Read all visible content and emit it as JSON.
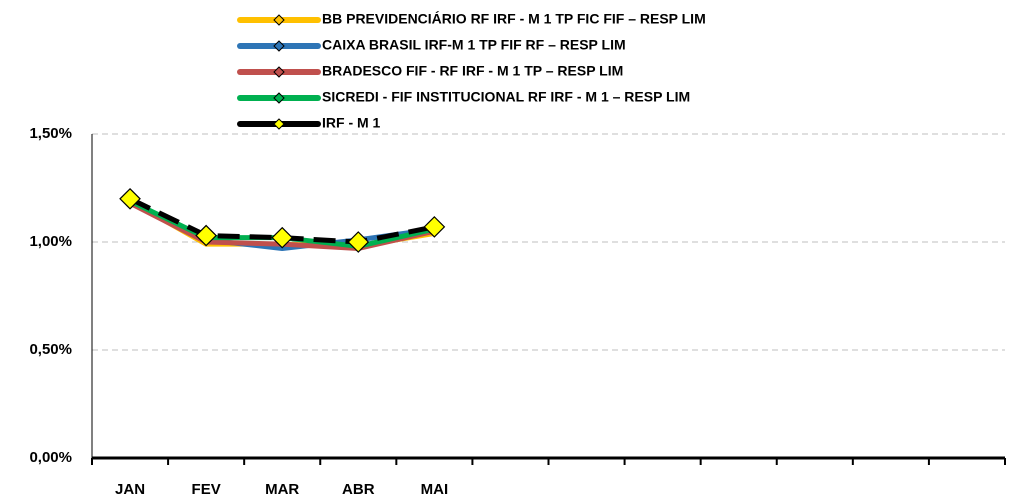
{
  "chart_data": {
    "type": "line",
    "categories": [
      "JAN",
      "FEV",
      "MAR",
      "ABR",
      "MAI",
      null,
      null,
      null,
      null,
      null,
      null,
      null
    ],
    "series": [
      {
        "name": "BB PREVIDENCIÁRIO RF IRF - M 1 TP FIC FIF – RESP LIM",
        "color": "#FFC000",
        "values": [
          1.19,
          0.99,
          0.99,
          0.98,
          1.04,
          null,
          null,
          null,
          null,
          null,
          null,
          null
        ]
      },
      {
        "name": "CAIXA BRASIL IRF-M 1 TP FIF RF – RESP LIM",
        "color": "#2E75B6",
        "values": [
          1.19,
          1.01,
          0.97,
          1.01,
          1.06,
          null,
          null,
          null,
          null,
          null,
          null,
          null
        ]
      },
      {
        "name": "BRADESCO FIF - RF IRF - M 1 TP – RESP LIM",
        "color": "#C0504D",
        "values": [
          1.18,
          1.0,
          0.99,
          0.97,
          1.05,
          null,
          null,
          null,
          null,
          null,
          null,
          null
        ]
      },
      {
        "name": "SICREDI - FIF INSTITUCIONAL RF IRF - M 1 – RESP LIM",
        "color": "#00B050",
        "values": [
          1.19,
          1.02,
          1.02,
          0.98,
          1.06,
          null,
          null,
          null,
          null,
          null,
          null,
          null
        ]
      },
      {
        "name": "IRF - M 1",
        "color": "#000000",
        "marker_color": "#FFFF00",
        "dashed": true,
        "values": [
          1.2,
          1.03,
          1.02,
          1.0,
          1.07,
          null,
          null,
          null,
          null,
          null,
          null,
          null
        ]
      }
    ],
    "ylim": [
      0,
      1.5
    ],
    "yticks": [
      {
        "value": 0,
        "label": "0,00%"
      },
      {
        "value": 0.5,
        "label": "0,50%"
      },
      {
        "value": 1.0,
        "label": "1,00%"
      },
      {
        "value": 1.5,
        "label": "1,50%"
      }
    ],
    "grid": true,
    "legend": "top"
  }
}
